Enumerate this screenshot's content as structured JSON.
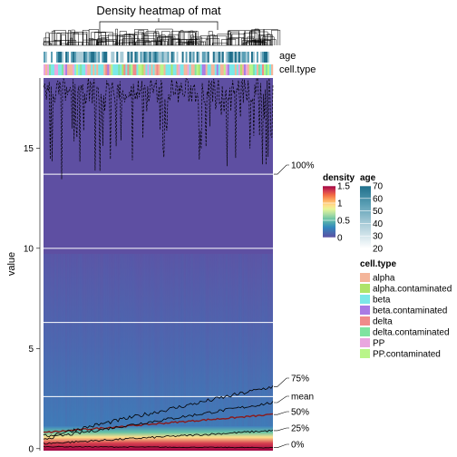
{
  "chart_data": {
    "type": "heatmap",
    "title": "Density heatmap of mat",
    "ylabel": "value",
    "ylim": [
      -0.1,
      18.5
    ],
    "y_ticks": [
      0,
      5,
      10,
      15
    ],
    "grid_values": [
      2.6,
      6.3,
      10.0,
      13.7
    ],
    "annotation_rows": [
      "age",
      "cell.type"
    ],
    "quantile_labels": [
      {
        "label": "100%",
        "value": 13.7
      },
      {
        "label": "75%",
        "value": 3.1
      },
      {
        "label": "mean",
        "value": 2.3
      },
      {
        "label": "50%",
        "value": 1.7
      },
      {
        "label": "25%",
        "value": 0.9
      },
      {
        "label": "0%",
        "value": 0.05
      }
    ],
    "density_legend": {
      "title": "density",
      "range": [
        0,
        1.5
      ],
      "ticks": [
        {
          "label": "1.5",
          "value": 1.5
        },
        {
          "label": "1",
          "value": 1.0
        },
        {
          "label": "0.5",
          "value": 0.5
        },
        {
          "label": "0",
          "value": 0.0
        }
      ],
      "colors": [
        "#9e0142",
        "#d53e4f",
        "#f46d43",
        "#fdae61",
        "#fee08b",
        "#e6f598",
        "#abdda4",
        "#66c2a5",
        "#3288bd",
        "#5e4fa2"
      ]
    },
    "age_legend": {
      "title": "age",
      "range": [
        20,
        70
      ],
      "ticks": [
        {
          "label": "70",
          "value": 70
        },
        {
          "label": "60",
          "value": 60
        },
        {
          "label": "50",
          "value": 50
        },
        {
          "label": "40",
          "value": 40
        },
        {
          "label": "30",
          "value": 30
        },
        {
          "label": "20",
          "value": 20
        }
      ],
      "colors": [
        "#1f6f8b",
        "#5b9fb5",
        "#a8cbd7",
        "#ffffff"
      ]
    },
    "cell_type_legend": {
      "title": "cell.type",
      "items": [
        {
          "label": "alpha",
          "color": "#f4b59a"
        },
        {
          "label": "alpha.contaminated",
          "color": "#aee46a"
        },
        {
          "label": "beta",
          "color": "#7ce8e8"
        },
        {
          "label": "beta.contaminated",
          "color": "#a97be4"
        },
        {
          "label": "delta",
          "color": "#f08a8a"
        },
        {
          "label": "delta.contaminated",
          "color": "#7fe3a0"
        },
        {
          "label": "PP",
          "color": "#e9a6df"
        },
        {
          "label": "PP.contaminated",
          "color": "#b9f58a"
        }
      ]
    }
  }
}
